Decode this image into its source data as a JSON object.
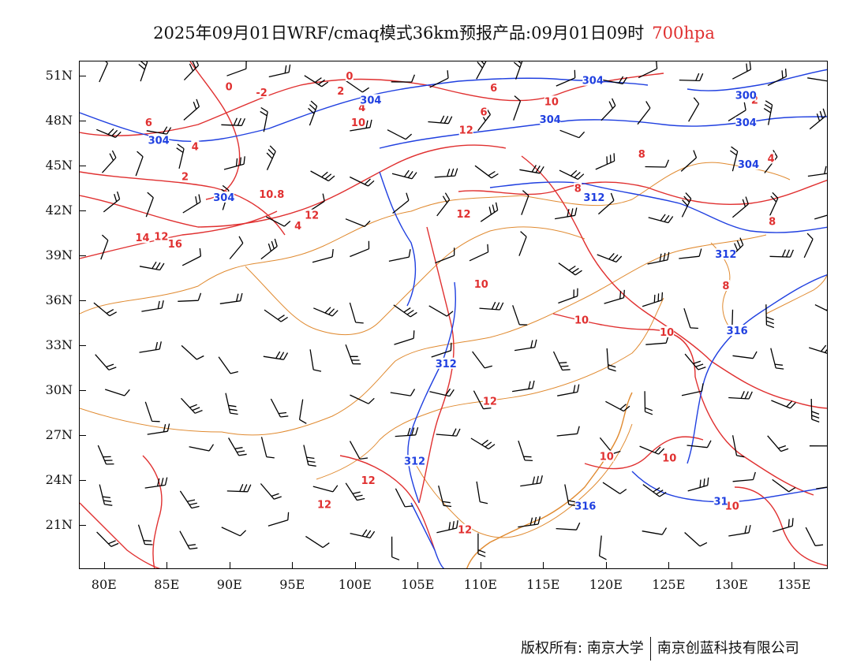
{
  "title": {
    "main": "2025年09月01日WRF/cmaq模式36km预报产品:09月01日09时",
    "level": "700hpa",
    "level_color": "#e03030"
  },
  "axes": {
    "lat_labels": [
      "51N",
      "48N",
      "45N",
      "42N",
      "39N",
      "36N",
      "33N",
      "30N",
      "27N",
      "24N",
      "21N"
    ],
    "lat_values": [
      51,
      48,
      45,
      42,
      39,
      36,
      33,
      30,
      27,
      24,
      21
    ],
    "lon_labels": [
      "80E",
      "85E",
      "90E",
      "95E",
      "100E",
      "105E",
      "110E",
      "115E",
      "120E",
      "125E",
      "130E",
      "135E"
    ],
    "lon_values": [
      80,
      85,
      90,
      95,
      100,
      105,
      110,
      115,
      120,
      125,
      130,
      135
    ]
  },
  "footer": {
    "left": "版权所有: 南京大学",
    "right": "南京创蓝科技有限公司"
  },
  "colors": {
    "temperature_contour": "#e03030",
    "geopotential_contour": "#2040e0",
    "boundary": "#e08a30",
    "wind_barb": "#000000"
  },
  "temperature_labels": [
    {
      "text": "0",
      "lon": 89.9,
      "lat": 50.3
    },
    {
      "text": "0",
      "lon": 99.5,
      "lat": 51.0
    },
    {
      "text": "-2",
      "lon": 92.5,
      "lat": 49.9
    },
    {
      "text": "2",
      "lon": 98.8,
      "lat": 50.0
    },
    {
      "text": "4",
      "lon": 100.5,
      "lat": 48.9
    },
    {
      "text": "6",
      "lon": 111.0,
      "lat": 50.2
    },
    {
      "text": "6",
      "lon": 110.2,
      "lat": 48.6
    },
    {
      "text": "6",
      "lon": 83.5,
      "lat": 47.9
    },
    {
      "text": "4",
      "lon": 87.2,
      "lat": 46.3
    },
    {
      "text": "10",
      "lon": 100.2,
      "lat": 47.9
    },
    {
      "text": "10",
      "lon": 115.6,
      "lat": 49.3
    },
    {
      "text": "12",
      "lon": 108.8,
      "lat": 47.4
    },
    {
      "text": "2",
      "lon": 86.4,
      "lat": 44.3
    },
    {
      "text": "10.8",
      "lon": 93.3,
      "lat": 43.1
    },
    {
      "text": "12",
      "lon": 96.5,
      "lat": 41.7
    },
    {
      "text": "12",
      "lon": 108.6,
      "lat": 41.8
    },
    {
      "text": "4",
      "lon": 95.4,
      "lat": 41.0
    },
    {
      "text": "12",
      "lon": 84.5,
      "lat": 40.3
    },
    {
      "text": "14",
      "lon": 83.0,
      "lat": 40.2
    },
    {
      "text": "16",
      "lon": 85.6,
      "lat": 39.8
    },
    {
      "text": "8",
      "lon": 117.7,
      "lat": 43.5
    },
    {
      "text": "8",
      "lon": 122.8,
      "lat": 45.8
    },
    {
      "text": "2",
      "lon": 131.8,
      "lat": 49.4
    },
    {
      "text": "4",
      "lon": 133.1,
      "lat": 45.5
    },
    {
      "text": "8",
      "lon": 133.2,
      "lat": 41.3
    },
    {
      "text": "8",
      "lon": 129.5,
      "lat": 37.0
    },
    {
      "text": "10",
      "lon": 110.0,
      "lat": 37.1
    },
    {
      "text": "10",
      "lon": 118.0,
      "lat": 34.7
    },
    {
      "text": "10",
      "lon": 124.8,
      "lat": 33.9
    },
    {
      "text": "12",
      "lon": 110.7,
      "lat": 29.3
    },
    {
      "text": "10",
      "lon": 120.0,
      "lat": 25.6
    },
    {
      "text": "10",
      "lon": 125.0,
      "lat": 25.5
    },
    {
      "text": "10",
      "lon": 130.0,
      "lat": 22.3
    },
    {
      "text": "12",
      "lon": 101.0,
      "lat": 24.0
    },
    {
      "text": "12",
      "lon": 97.5,
      "lat": 22.4
    },
    {
      "text": "12",
      "lon": 108.7,
      "lat": 20.7
    }
  ],
  "height_labels": [
    {
      "text": "304",
      "lon": 101.2,
      "lat": 49.4
    },
    {
      "text": "304",
      "lon": 118.9,
      "lat": 50.7
    },
    {
      "text": "304",
      "lon": 115.5,
      "lat": 48.1
    },
    {
      "text": "304",
      "lon": 84.3,
      "lat": 46.7
    },
    {
      "text": "304",
      "lon": 89.5,
      "lat": 42.9
    },
    {
      "text": "300",
      "lon": 131.1,
      "lat": 49.7
    },
    {
      "text": "304",
      "lon": 131.1,
      "lat": 47.9
    },
    {
      "text": "304",
      "lon": 131.3,
      "lat": 45.1
    },
    {
      "text": "312",
      "lon": 119.0,
      "lat": 42.9
    },
    {
      "text": "312",
      "lon": 129.5,
      "lat": 39.1
    },
    {
      "text": "316",
      "lon": 130.4,
      "lat": 34.0
    },
    {
      "text": "312",
      "lon": 107.2,
      "lat": 31.8
    },
    {
      "text": "312",
      "lon": 104.7,
      "lat": 25.3
    },
    {
      "text": "316",
      "lon": 118.3,
      "lat": 22.3
    },
    {
      "text": "31",
      "lon": 129.1,
      "lat": 22.6
    }
  ]
}
